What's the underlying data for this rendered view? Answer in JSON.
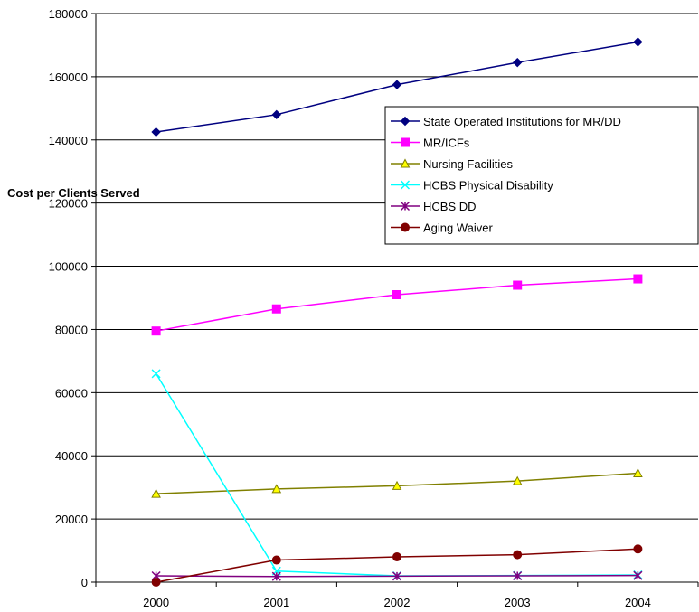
{
  "chart_data": {
    "type": "line",
    "title": "",
    "xlabel": "",
    "ylabel": "Cost per Clients Served",
    "ylim": [
      0,
      180000
    ],
    "yticks": [
      0,
      20000,
      40000,
      60000,
      80000,
      100000,
      120000,
      140000,
      160000,
      180000
    ],
    "categories": [
      "2000",
      "2001",
      "2002",
      "2003",
      "2004"
    ],
    "grid": "horizontal",
    "legend_position": "right",
    "series": [
      {
        "name": "State Operated Institutions for MR/DD",
        "color": "#000080",
        "marker": "diamond",
        "values": [
          142500,
          148000,
          157500,
          164500,
          171000
        ]
      },
      {
        "name": "MR/ICFs",
        "color": "#ff00ff",
        "marker": "square",
        "values": [
          79500,
          86500,
          91000,
          94000,
          96000
        ]
      },
      {
        "name": "Nursing Facilities",
        "color": "#808000",
        "marker": "triangle",
        "values": [
          28000,
          29500,
          30500,
          32000,
          34500
        ]
      },
      {
        "name": "HCBS Physical Disability",
        "color": "#00ffff",
        "marker": "x",
        "values": [
          66000,
          3500,
          2000,
          2100,
          2300
        ]
      },
      {
        "name": "HCBS DD",
        "color": "#800080",
        "marker": "star",
        "values": [
          2000,
          1800,
          1900,
          2000,
          2100
        ]
      },
      {
        "name": "Aging Waiver",
        "color": "#800000",
        "marker": "circle",
        "values": [
          0,
          7000,
          8000,
          8700,
          10500
        ]
      }
    ]
  }
}
